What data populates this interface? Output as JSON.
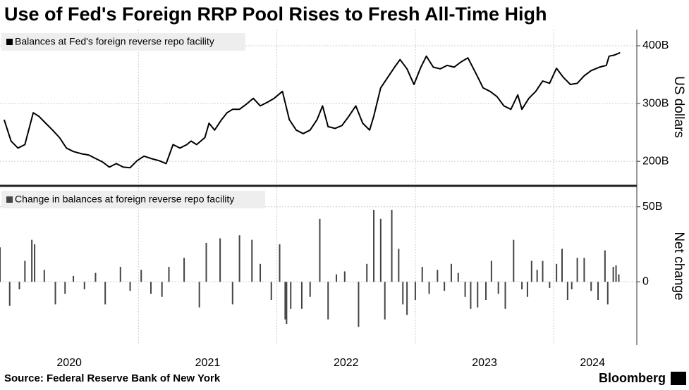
{
  "chart_data": [
    {
      "type": "line",
      "title": "Use of Fed's Foreign RRP Pool Rises to Fresh All-Time High",
      "y_label": "US dollars",
      "series": [
        {
          "name": "Balances at Fed's foreign reverse repo facility",
          "color": "#000000",
          "x": [
            2020.03,
            2020.08,
            2020.13,
            2020.18,
            2020.24,
            2020.28,
            2020.33,
            2020.38,
            2020.43,
            2020.48,
            2020.53,
            2020.59,
            2020.64,
            2020.69,
            2020.74,
            2020.79,
            2020.84,
            2020.89,
            2020.94,
            2020.99,
            2021.04,
            2021.09,
            2021.15,
            2021.2,
            2021.25,
            2021.3,
            2021.35,
            2021.38,
            2021.42,
            2021.48,
            2021.51,
            2021.55,
            2021.6,
            2021.64,
            2021.68,
            2021.73,
            2021.78,
            2021.83,
            2021.88,
            2021.93,
            2021.98,
            2022.04,
            2022.09,
            2022.14,
            2022.19,
            2022.24,
            2022.29,
            2022.33,
            2022.37,
            2022.42,
            2022.47,
            2022.52,
            2022.57,
            2022.62,
            2022.67,
            2022.7,
            2022.75,
            2022.8,
            2022.85,
            2022.89,
            2022.94,
            2022.99,
            2023.04,
            2023.08,
            2023.13,
            2023.18,
            2023.23,
            2023.28,
            2023.33,
            2023.38,
            2023.44,
            2023.49,
            2023.54,
            2023.59,
            2023.64,
            2023.69,
            2023.74,
            2023.77,
            2023.82,
            2023.87,
            2023.92,
            2023.97,
            2024.02,
            2024.07,
            2024.12,
            2024.17,
            2024.22,
            2024.27,
            2024.33,
            2024.38,
            2024.4,
            2024.44,
            2024.48
          ],
          "values": [
            272,
            235,
            223,
            229,
            284,
            278,
            266,
            254,
            241,
            223,
            217,
            213,
            211,
            205,
            199,
            190,
            196,
            190,
            189,
            201,
            209,
            205,
            201,
            196,
            229,
            223,
            229,
            235,
            229,
            241,
            266,
            254,
            272,
            284,
            290,
            290,
            299,
            309,
            296,
            302,
            309,
            321,
            272,
            254,
            248,
            254,
            272,
            296,
            260,
            257,
            262,
            278,
            296,
            266,
            254,
            278,
            327,
            345,
            363,
            376,
            360,
            333,
            363,
            382,
            363,
            360,
            366,
            363,
            372,
            379,
            351,
            327,
            321,
            312,
            296,
            290,
            315,
            290,
            309,
            321,
            339,
            335,
            361,
            345,
            333,
            335,
            348,
            357,
            363,
            366,
            382,
            384,
            388
          ]
        }
      ],
      "xlim": [
        2020,
        2024.6
      ],
      "xgrid": [
        2021,
        2022,
        2023,
        2024
      ],
      "ylim": [
        160,
        428
      ],
      "yticks": [
        {
          "value": 200,
          "label": "200B"
        },
        {
          "value": 300,
          "label": "300B"
        },
        {
          "value": 400,
          "label": "400B"
        }
      ]
    },
    {
      "type": "bar",
      "y_label": "Net change",
      "series": [
        {
          "name": "Change in balances at foreign reverse repo facility",
          "color": "#444444",
          "x": [
            2020.0,
            2020.07,
            2020.14,
            2020.18,
            2020.23,
            2020.25,
            2020.32,
            2020.4,
            2020.47,
            2020.53,
            2020.61,
            2020.69,
            2020.76,
            2020.87,
            2020.94,
            2021.02,
            2021.09,
            2021.17,
            2021.22,
            2021.33,
            2021.44,
            2021.49,
            2021.59,
            2021.68,
            2021.73,
            2021.82,
            2021.88,
            2021.96,
            2022.02,
            2022.06,
            2022.07,
            2022.1,
            2022.18,
            2022.24,
            2022.31,
            2022.37,
            2022.43,
            2022.49,
            2022.59,
            2022.65,
            2022.7,
            2022.75,
            2022.78,
            2022.83,
            2022.88,
            2022.91,
            2022.94,
            2023.0,
            2023.05,
            2023.1,
            2023.16,
            2023.21,
            2023.26,
            2023.31,
            2023.36,
            2023.4,
            2023.45,
            2023.51,
            2023.55,
            2023.6,
            2023.65,
            2023.71,
            2023.77,
            2023.81,
            2023.84,
            2023.88,
            2023.92,
            2023.97,
            2024.02,
            2024.06,
            2024.1,
            2024.13,
            2024.17,
            2024.22,
            2024.27,
            2024.32,
            2024.37,
            2024.39,
            2024.43,
            2024.45,
            2024.47
          ],
          "values": [
            23,
            -16,
            -5,
            14,
            28,
            25,
            8,
            -15,
            -8,
            4,
            -5,
            6,
            -15,
            10,
            -6,
            8,
            -8,
            -10,
            10,
            16,
            -17,
            26,
            29,
            -15,
            31,
            28,
            12,
            -12,
            25,
            -25,
            -28,
            -18,
            -18,
            -10,
            42,
            -25,
            5,
            7,
            -30,
            12,
            48,
            42,
            -25,
            48,
            22,
            -15,
            -22,
            -12,
            10,
            -8,
            8,
            -6,
            12,
            6,
            -10,
            -18,
            -17,
            -12,
            14,
            -8,
            -18,
            28,
            -5,
            -10,
            14,
            8,
            14,
            -4,
            12,
            22,
            -12,
            -5,
            16,
            16,
            -6,
            -12,
            21,
            -15,
            10,
            11,
            5
          ]
        }
      ],
      "xlim": [
        2020,
        2024.6
      ],
      "xgrid": [
        2021,
        2022,
        2023,
        2024
      ],
      "xticks": [
        {
          "value": 2020.5,
          "label": "2020"
        },
        {
          "value": 2021.5,
          "label": "2021"
        },
        {
          "value": 2022.5,
          "label": "2022"
        },
        {
          "value": 2023.5,
          "label": "2023"
        },
        {
          "value": 2024.28,
          "label": "2024"
        }
      ],
      "ylim": [
        -42,
        63
      ],
      "yticks": [
        0,
        {
          "value": 50,
          "label": "50B"
        }
      ]
    }
  ],
  "source": "Source: Federal Reserve Bank of New York",
  "brand": "Bloomberg"
}
